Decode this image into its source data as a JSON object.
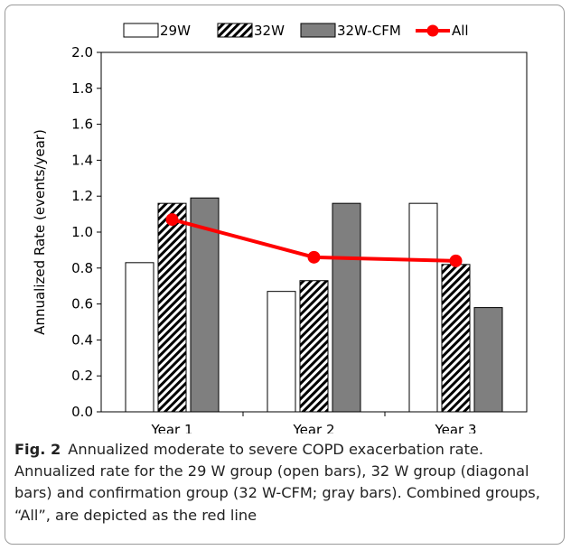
{
  "chart_data": {
    "type": "bar",
    "categories": [
      "Year 1",
      "Year 2",
      "Year 3"
    ],
    "series": [
      {
        "name": "29W",
        "kind": "bar",
        "style": "open",
        "values": [
          0.83,
          0.67,
          1.16
        ]
      },
      {
        "name": "32W",
        "kind": "bar",
        "style": "diagonal",
        "values": [
          1.16,
          0.73,
          0.82
        ]
      },
      {
        "name": "32W-CFM",
        "kind": "bar",
        "style": "gray",
        "color": "#7f7f7f",
        "values": [
          1.19,
          1.16,
          0.58
        ]
      },
      {
        "name": "All",
        "kind": "line",
        "color": "#ff0000",
        "values": [
          1.07,
          0.86,
          0.84
        ]
      }
    ],
    "ylabel": "Annualized Rate (events/year)",
    "ylim": [
      0,
      2.0
    ],
    "yticks": [
      "0.0",
      "0.2",
      "0.4",
      "0.6",
      "0.8",
      "1.0",
      "1.2",
      "1.4",
      "1.6",
      "1.8",
      "2.0"
    ],
    "grid": false,
    "legend_position": "top"
  },
  "caption": {
    "label": "Fig. 2",
    "text": "Annualized moderate to severe COPD exacerbation rate. Annualized rate for the 29 W group (open bars), 32 W group (diagonal bars) and confirmation group (32 W-CFM; gray bars). Combined groups, “All”, are depicted as the red line"
  }
}
